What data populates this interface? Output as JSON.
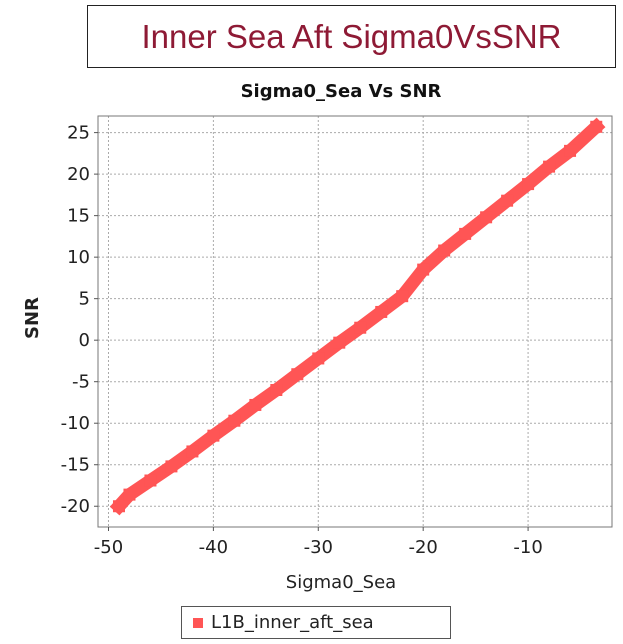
{
  "banner": {
    "title": "Inner Sea Aft Sigma0VsSNR"
  },
  "chart_data": {
    "type": "scatter",
    "title": "Sigma0_Sea Vs SNR",
    "xlabel": "Sigma0_Sea",
    "ylabel": "SNR",
    "xlim": [
      -51,
      -2
    ],
    "ylim": [
      -22.5,
      27
    ],
    "xticks": [
      -50,
      -40,
      -30,
      -20,
      -10
    ],
    "yticks": [
      25,
      20,
      15,
      10,
      5,
      0,
      -5,
      -10,
      -15,
      -20
    ],
    "grid": true,
    "legend_position": "bottom",
    "series": [
      {
        "name": "L1B_inner_aft_sea",
        "color": "#ff5555",
        "x": [
          -49,
          -48,
          -46,
          -44,
          -42,
          -40,
          -38,
          -36,
          -34,
          -32,
          -30,
          -28,
          -26,
          -24,
          -22,
          -20,
          -18,
          -16,
          -14,
          -12,
          -10,
          -8,
          -6,
          -3.5
        ],
        "y": [
          -20,
          -18.6,
          -16.9,
          -15.2,
          -13.4,
          -11.5,
          -9.7,
          -7.8,
          -6,
          -4.1,
          -2.2,
          -0.3,
          1.5,
          3.4,
          5.3,
          8.5,
          10.8,
          12.8,
          14.8,
          16.8,
          18.8,
          20.9,
          22.8,
          25.7
        ]
      }
    ]
  }
}
